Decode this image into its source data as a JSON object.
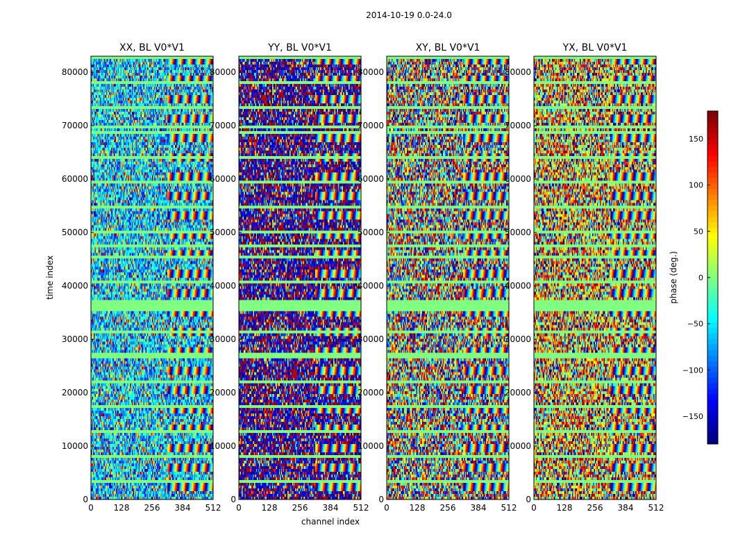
{
  "figure": {
    "suptitle": "2014-10-19 0.0-24.0"
  },
  "chart_data": {
    "type": "heatmap",
    "panels": [
      {
        "title": "XX, BL V0*V1",
        "mean_phase": -60,
        "noise": 40
      },
      {
        "title": "YY, BL V0*V1",
        "mean_phase": -165,
        "noise": 30
      },
      {
        "title": "XY, BL V0*V1",
        "mean_phase": -20,
        "noise": 120
      },
      {
        "title": "YX, BL V0*V1",
        "mean_phase": 80,
        "noise": 80
      }
    ],
    "xlabel": "channel index",
    "ylabel": "time index",
    "xlim": [
      0,
      512
    ],
    "ylim": [
      0,
      83000
    ],
    "xticks": [
      0,
      128,
      256,
      384,
      512
    ],
    "yticks": [
      0,
      10000,
      20000,
      30000,
      40000,
      50000,
      60000,
      70000,
      80000
    ],
    "flagged_time_bands": [
      [
        35500,
        37500
      ],
      [
        26500,
        27500
      ],
      [
        47000,
        47500
      ],
      [
        69500,
        70000
      ]
    ],
    "fringe_channel_start": 320,
    "colorbar": {
      "label": "phase (deg.)",
      "vmin": -180,
      "vmax": 180,
      "ticks": [
        -150,
        -100,
        -50,
        0,
        50,
        100,
        150
      ],
      "colormap": "jet"
    }
  }
}
